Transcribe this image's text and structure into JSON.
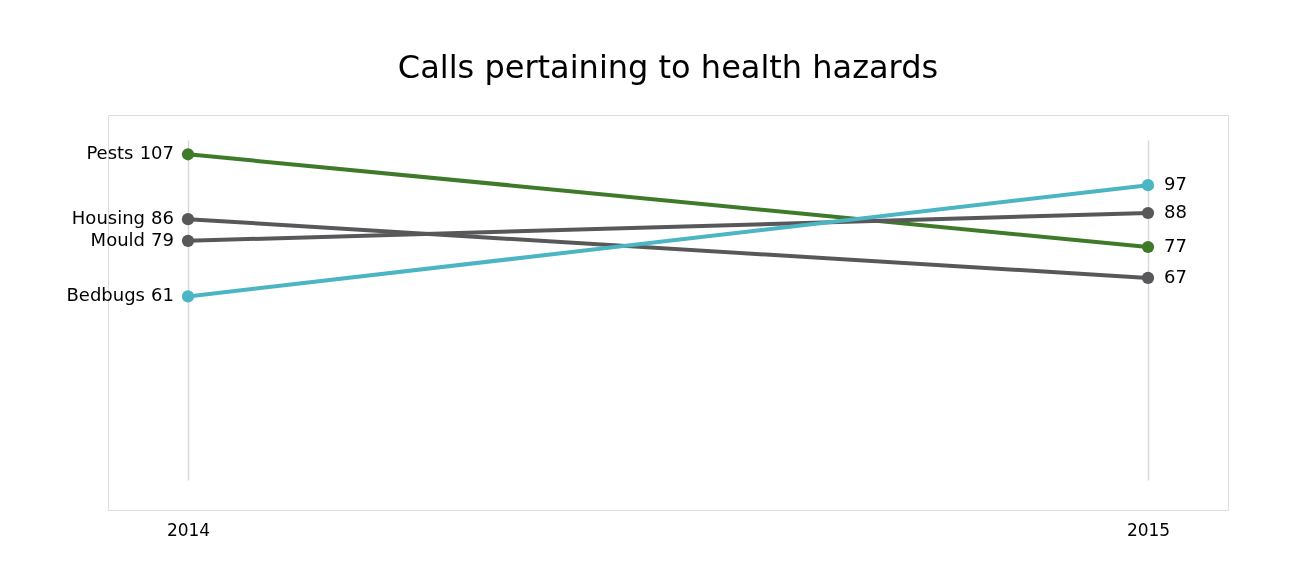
{
  "chart_data": {
    "type": "line",
    "title": "Calls pertaining to health hazards",
    "categories": [
      "2014",
      "2015"
    ],
    "series": [
      {
        "name": "Pests",
        "color": "#3f7a2a",
        "values": [
          107,
          77
        ]
      },
      {
        "name": "Housing",
        "color": "#58585a",
        "values": [
          86,
          67
        ]
      },
      {
        "name": "Mould",
        "color": "#58585a",
        "values": [
          79,
          88
        ]
      },
      {
        "name": "Bedbugs",
        "color": "#4bb5c4",
        "values": [
          61,
          97
        ]
      }
    ],
    "grid": "x",
    "legend": false,
    "marker": "circle",
    "line_style": "solid",
    "data_labels": true,
    "tick_labels": "x"
  }
}
